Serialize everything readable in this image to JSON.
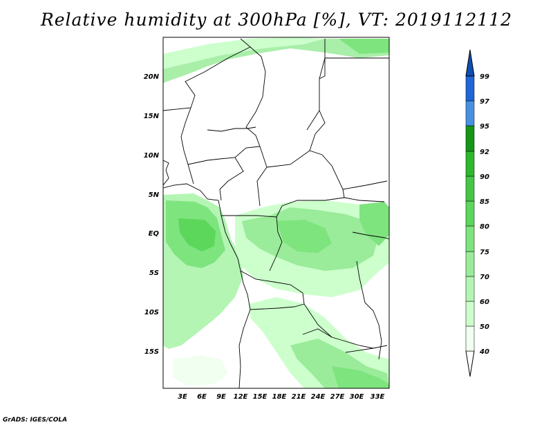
{
  "title": "Relative humidity at 300hPa [%], VT: 2019112112",
  "footer": "GrADS: IGES/COLA",
  "map": {
    "lat_labels": [
      "20N",
      "15N",
      "10N",
      "5N",
      "EQ",
      "5S",
      "10S",
      "15S"
    ],
    "lon_labels": [
      "3E",
      "6E",
      "9E",
      "12E",
      "15E",
      "18E",
      "21E",
      "24E",
      "27E",
      "30E",
      "33E"
    ]
  },
  "legend": {
    "levels": [
      "40",
      "50",
      "60",
      "70",
      "75",
      "80",
      "85",
      "90",
      "92",
      "95",
      "97",
      "99"
    ],
    "colors": [
      "#f0fff0",
      "#ccffcc",
      "#b4f5b4",
      "#9aeb9a",
      "#7ee47e",
      "#5cd75c",
      "#46c646",
      "#2eb82e",
      "#169616",
      "#4a90e2",
      "#1f66d6",
      "#0d4fb3"
    ]
  }
}
